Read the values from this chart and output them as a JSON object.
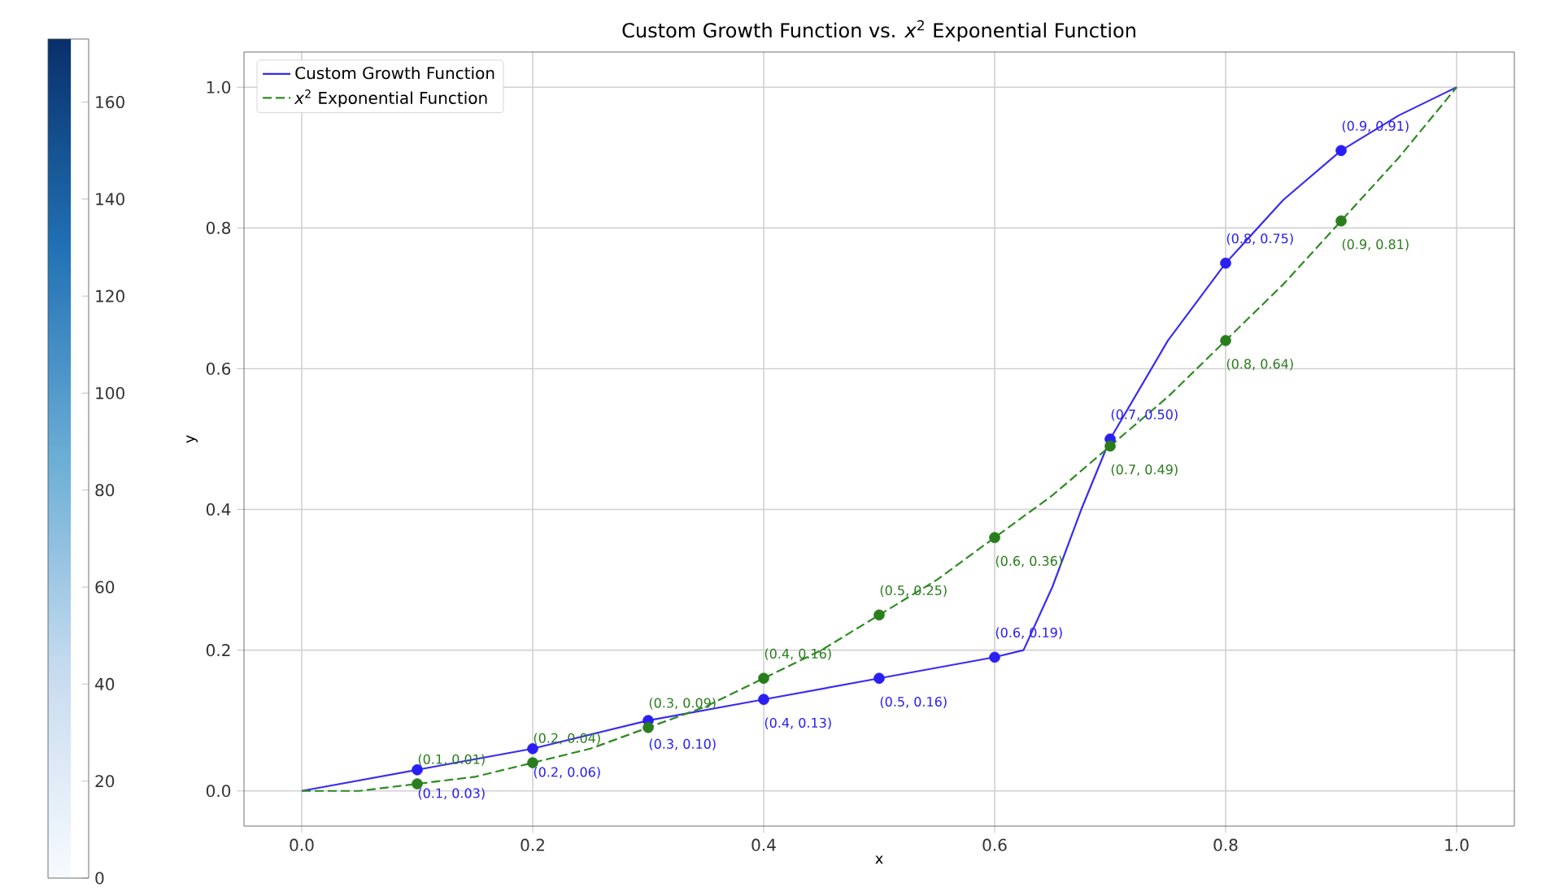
{
  "chart_data": {
    "type": "line",
    "title": "Custom Growth Function vs. *x*$^{2}$ Exponential Function",
    "xlabel": "x",
    "ylabel": "y",
    "xlim": [
      -0.05,
      1.05
    ],
    "ylim": [
      -0.05,
      1.05
    ],
    "xticks": [
      {
        "value": 0,
        "label": "0.0"
      },
      {
        "value": 0.2,
        "label": "0.2"
      },
      {
        "value": 0.4,
        "label": "0.4"
      },
      {
        "value": 0.6,
        "label": "0.6"
      },
      {
        "value": 0.8,
        "label": "0.8"
      },
      {
        "value": 1,
        "label": "1.0"
      }
    ],
    "yticks": [
      {
        "value": 0,
        "label": "0.0"
      },
      {
        "value": 0.2,
        "label": "0.2"
      },
      {
        "value": 0.4,
        "label": "0.4"
      },
      {
        "value": 0.6,
        "label": "0.6"
      },
      {
        "value": 0.8,
        "label": "0.8"
      },
      {
        "value": 1,
        "label": "1.0"
      }
    ],
    "grid": true,
    "legend": "top left",
    "clim": [
      0,
      173
    ],
    "cticks": [
      0,
      20,
      40,
      60,
      80,
      100,
      120,
      140,
      160
    ],
    "series": [
      {
        "name": "Custom Growth Function",
        "color": "#3a2cf0",
        "line_style": "solid",
        "marker": "none",
        "x": [
          0,
          0.1,
          0.2,
          0.3,
          0.4,
          0.5,
          0.6,
          0.625,
          0.65,
          0.675,
          0.7,
          0.75,
          0.8,
          0.85,
          0.9,
          0.95,
          1
        ],
        "values": [
          0,
          0.03,
          0.06,
          0.1,
          0.13,
          0.16,
          0.19,
          0.2,
          0.29,
          0.4,
          0.5,
          0.64,
          0.75,
          0.84,
          0.91,
          0.96,
          1
        ]
      },
      {
        "name": "*x*$^{2}$ Exponential Function",
        "color": "#2e8b22",
        "line_style": "dashed",
        "marker": "none",
        "x": [
          0,
          0.05,
          0.1,
          0.15,
          0.2,
          0.25,
          0.3,
          0.35,
          0.4,
          0.45,
          0.5,
          0.55,
          0.6,
          0.65,
          0.7,
          0.75,
          0.8,
          0.85,
          0.9,
          0.95,
          1
        ],
        "values": [
          0,
          0,
          0.01,
          0.02,
          0.04,
          0.06,
          0.09,
          0.12,
          0.16,
          0.2,
          0.25,
          0.3,
          0.36,
          0.42,
          0.49,
          0.56,
          0.64,
          0.72,
          0.81,
          0.9,
          1
        ]
      },
      {
        "type": "scatter",
        "color": "#2a1ff2",
        "marker": "circle",
        "x": [
          0.1,
          0.2,
          0.3,
          0.4,
          0.5,
          0.6,
          0.7,
          0.8,
          0.9
        ],
        "values": [
          0.03,
          0.06,
          0.1,
          0.13,
          0.16,
          0.19,
          0.5,
          0.75,
          0.91
        ],
        "value_labels": [
          "(0.1, 0.03)",
          "(0.2, 0.06)",
          "(0.3, 0.10)",
          "(0.4, 0.13)",
          "(0.5, 0.16)",
          "(0.6, 0.19)",
          "(0.7, 0.50)",
          "(0.8, 0.75)",
          "(0.9, 0.91)"
        ]
      },
      {
        "type": "scatter",
        "color": "#2a7d1c",
        "marker": "circle",
        "x": [
          0.1,
          0.2,
          0.3,
          0.4,
          0.5,
          0.6,
          0.7,
          0.8,
          0.9
        ],
        "values": [
          0.01,
          0.04,
          0.09,
          0.16,
          0.25,
          0.36,
          0.49,
          0.64,
          0.81
        ],
        "value_labels": [
          "(0.1, 0.01)",
          "(0.2, 0.04)",
          "(0.3, 0.09)",
          "(0.4, 0.16)",
          "(0.5, 0.25)",
          "(0.6, 0.36)",
          "(0.7, 0.49)",
          "(0.8, 0.64)",
          "(0.9, 0.81)"
        ]
      }
    ]
  }
}
